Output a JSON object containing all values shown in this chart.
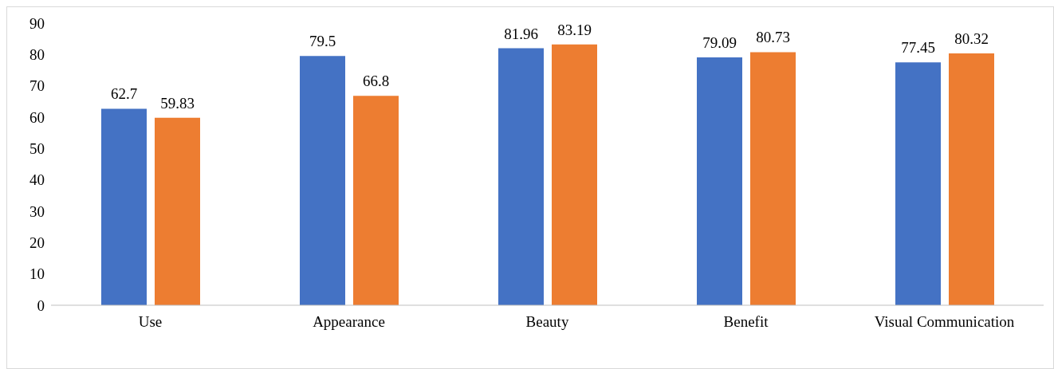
{
  "chart_data": {
    "type": "bar",
    "categories": [
      "Use",
      "Appearance",
      "Beauty",
      "Benefit",
      "Visual Communication"
    ],
    "series": [
      {
        "color": "#4472c4",
        "values": [
          62.7,
          79.5,
          81.96,
          79.09,
          77.45
        ]
      },
      {
        "color": "#ed7d31",
        "values": [
          59.83,
          66.8,
          83.19,
          80.73,
          80.32
        ]
      }
    ],
    "ylim": [
      0,
      90
    ],
    "yticks": [
      0,
      10,
      20,
      30,
      40,
      50,
      60,
      70,
      80,
      90
    ],
    "grid": false,
    "legend": false,
    "data_labels": true
  }
}
